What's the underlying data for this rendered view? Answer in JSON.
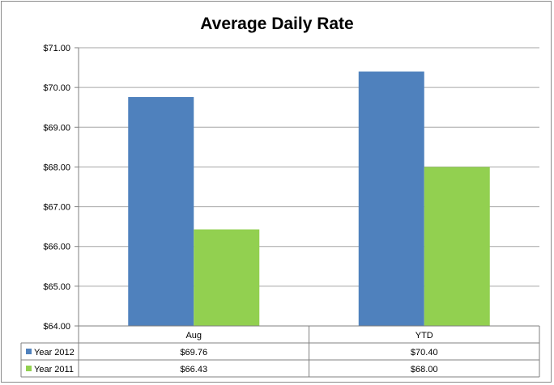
{
  "chart_data": {
    "type": "bar",
    "title": "Average Daily Rate",
    "categories": [
      "Aug",
      "YTD"
    ],
    "series": [
      {
        "name": "Year 2012",
        "values": [
          69.76,
          70.4
        ],
        "color": "#4f81bd",
        "labels": [
          "$69.76",
          "$70.40"
        ]
      },
      {
        "name": "Year 2011",
        "values": [
          66.43,
          68.0
        ],
        "color": "#92d050",
        "labels": [
          "$66.43",
          "$68.00"
        ]
      }
    ],
    "ylim": [
      64,
      71
    ],
    "yticks": [
      {
        "value": 64,
        "label": "$64.00"
      },
      {
        "value": 65,
        "label": "$65.00"
      },
      {
        "value": 66,
        "label": "$66.00"
      },
      {
        "value": 67,
        "label": "$67.00"
      },
      {
        "value": 68,
        "label": "$68.00"
      },
      {
        "value": 69,
        "label": "$69.00"
      },
      {
        "value": 70,
        "label": "$70.00"
      },
      {
        "value": 71,
        "label": "$71.00"
      }
    ],
    "grid": true,
    "legend": "data-table",
    "xlabel": "",
    "ylabel": ""
  }
}
